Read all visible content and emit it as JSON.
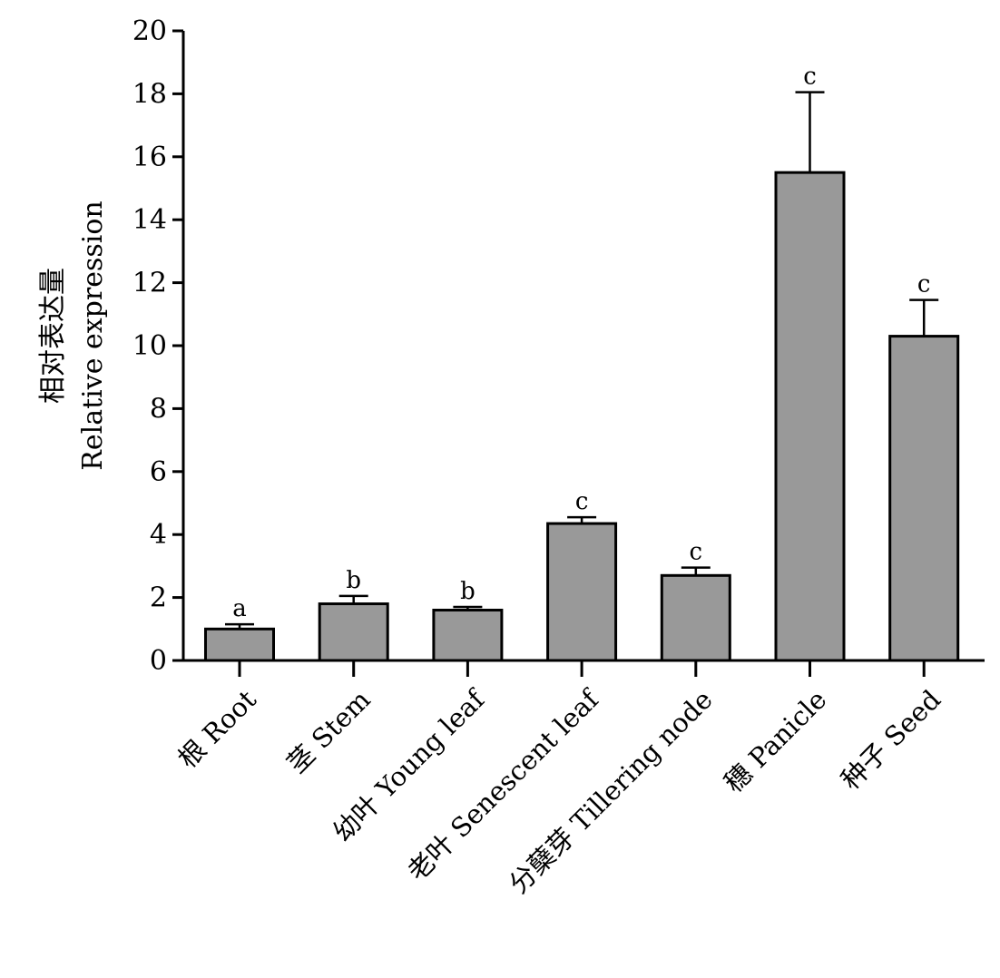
{
  "chart_data": {
    "type": "bar",
    "categories": [
      "根 Root",
      "茎 Stem",
      "幼叶 Young leaf",
      "老叶 Senescent leaf",
      "分蘖芽 Tillering node",
      "穗 Panicle",
      "种子 Seed"
    ],
    "values": [
      1.0,
      1.8,
      1.6,
      4.35,
      2.7,
      15.5,
      10.3
    ],
    "errors": [
      0.15,
      0.25,
      0.1,
      0.2,
      0.25,
      2.55,
      1.15
    ],
    "significance": [
      "a",
      "b",
      "b",
      "c",
      "c",
      "c",
      "c"
    ],
    "title": "",
    "xlabel": "",
    "ylabel_line1": "相对表达量",
    "ylabel_line2": "Relative expression",
    "ylim": [
      0,
      20
    ],
    "yticks": [
      0,
      2,
      4,
      6,
      8,
      10,
      12,
      14,
      16,
      18,
      20
    ],
    "grid": false,
    "bar_color": "#999999"
  }
}
